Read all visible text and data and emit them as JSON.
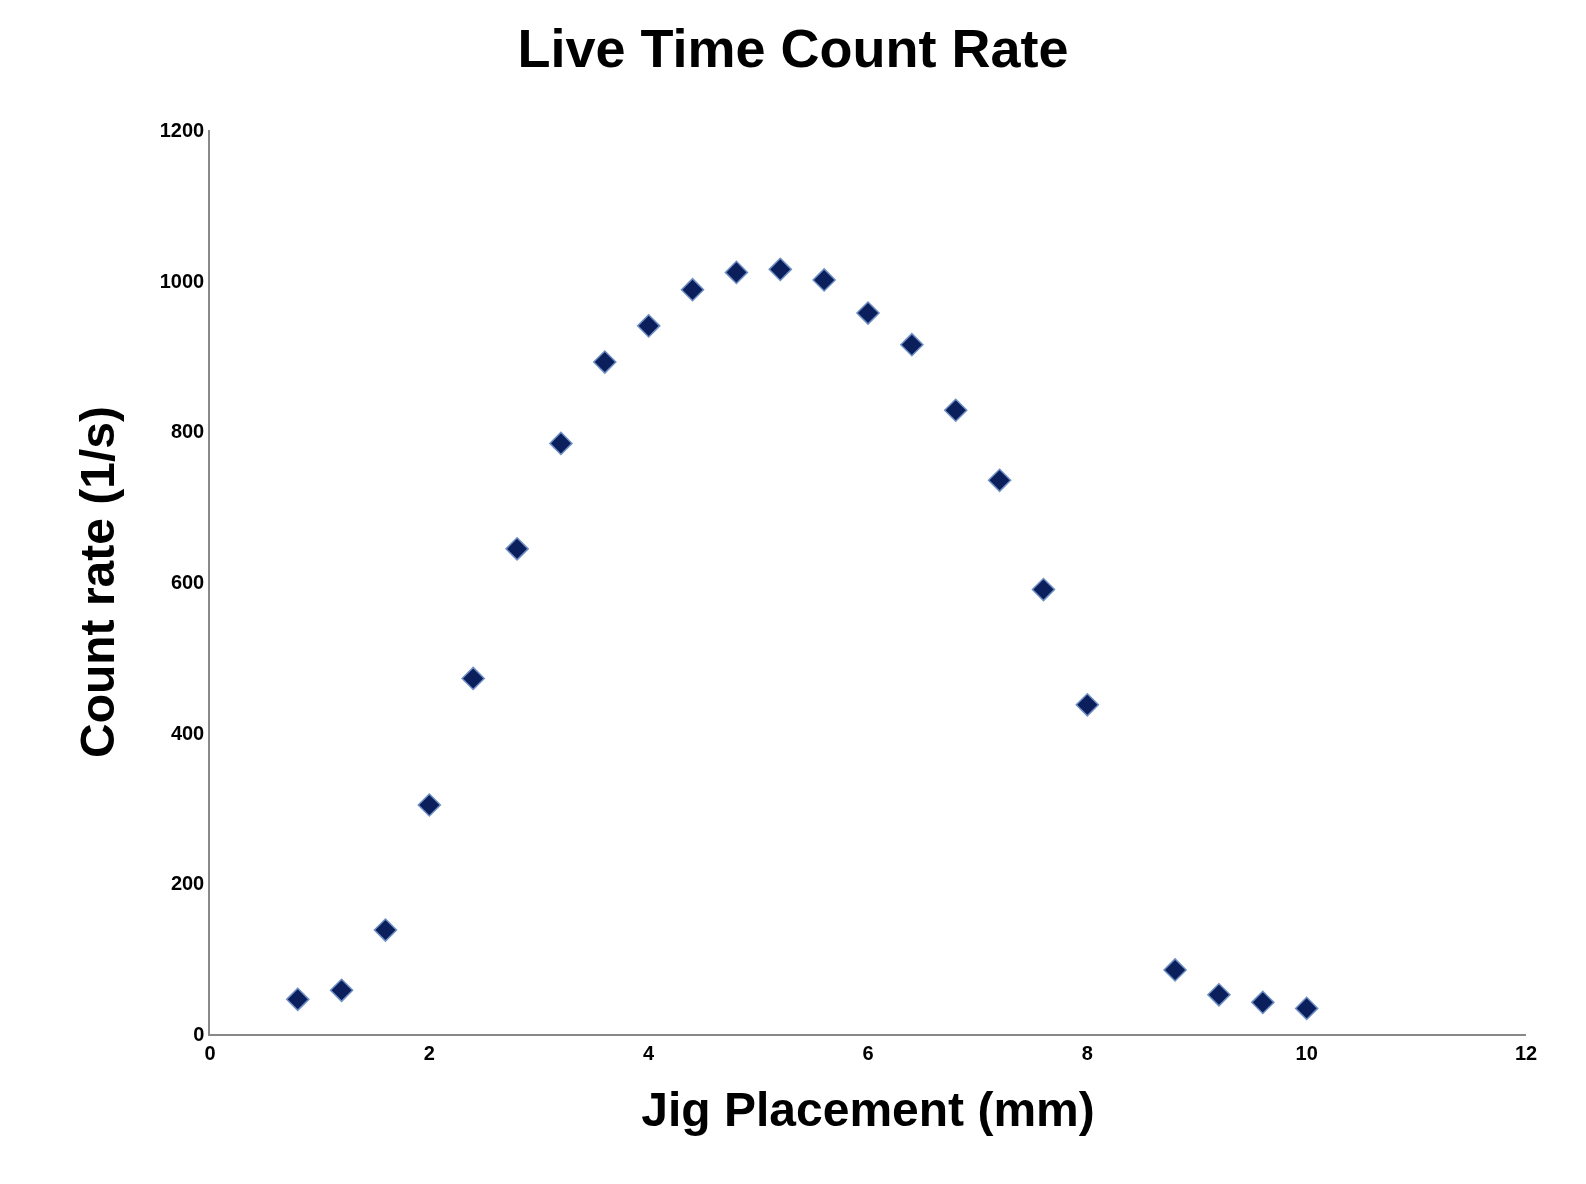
{
  "chart_data": {
    "type": "scatter",
    "title": "Live Time Count Rate",
    "xlabel": "Jig Placement (mm)",
    "ylabel": "Count rate (1/s)",
    "x": [
      0.8,
      1.2,
      1.6,
      2.0,
      2.4,
      2.8,
      3.2,
      3.6,
      4.0,
      4.4,
      4.8,
      5.2,
      5.6,
      6.0,
      6.4,
      6.8,
      7.2,
      7.6,
      8.0,
      8.8,
      9.2,
      9.6,
      10.0
    ],
    "series": [
      {
        "color": "#0a1f5c",
        "values": [
          46,
          58,
          138,
          304,
          472,
          644,
          784,
          892,
          940,
          988,
          1011,
          1015,
          1001,
          957,
          915,
          828,
          735,
          590,
          437,
          85,
          52,
          42,
          34
        ]
      }
    ],
    "xlim": [
      0,
      12
    ],
    "xticks": [
      0,
      2,
      4,
      6,
      8,
      10,
      12
    ],
    "ylim": [
      0,
      1200
    ],
    "yticks": [
      0,
      200,
      400,
      600,
      800,
      1000,
      1200
    ],
    "legend": false,
    "marker": "diamond"
  }
}
